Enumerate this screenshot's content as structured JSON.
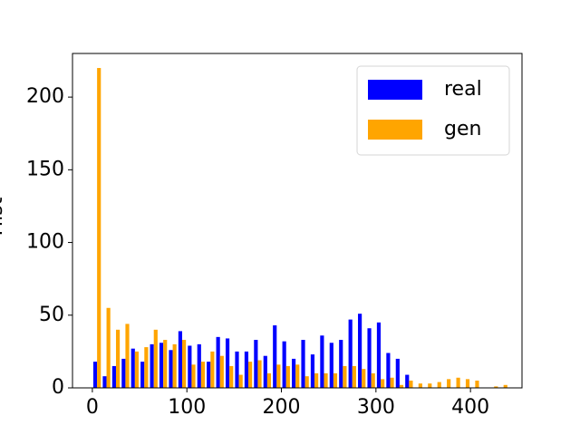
{
  "chart_data": {
    "type": "histogram",
    "ylabel": "Hist",
    "bins": [
      0,
      10,
      20,
      30,
      40,
      50,
      60,
      70,
      80,
      90,
      100,
      110,
      120,
      130,
      140,
      150,
      160,
      170,
      180,
      190,
      200,
      210,
      220,
      230,
      240,
      250,
      260,
      270,
      280,
      290,
      300,
      310,
      320,
      330,
      340,
      350,
      360,
      370,
      380,
      390,
      400,
      410,
      420,
      430,
      440
    ],
    "series": [
      {
        "name": "real",
        "color": "#0000ff",
        "values": [
          18,
          8,
          15,
          20,
          27,
          18,
          30,
          31,
          26,
          39,
          29,
          30,
          18,
          35,
          34,
          25,
          25,
          33,
          22,
          43,
          32,
          20,
          33,
          23,
          36,
          31,
          33,
          47,
          51,
          41,
          45,
          24,
          20,
          9,
          0,
          0,
          0,
          0,
          0,
          0,
          0,
          0,
          0,
          0
        ]
      },
      {
        "name": "gen",
        "color": "#ffa500",
        "values": [
          220,
          55,
          40,
          44,
          25,
          28,
          40,
          33,
          30,
          33,
          16,
          18,
          25,
          22,
          15,
          9,
          18,
          19,
          10,
          16,
          15,
          16,
          8,
          10,
          10,
          10,
          15,
          15,
          13,
          10,
          6,
          7,
          2,
          5,
          3,
          3,
          4,
          6,
          7,
          6,
          5,
          0,
          1,
          2
        ]
      }
    ],
    "xlim": [
      -21,
      454.5
    ],
    "xticks": [
      0,
      100,
      200,
      300,
      400
    ],
    "ylim": [
      0,
      230
    ],
    "yticks": [
      0,
      50,
      100,
      150,
      200
    ],
    "legend": "upper right"
  }
}
